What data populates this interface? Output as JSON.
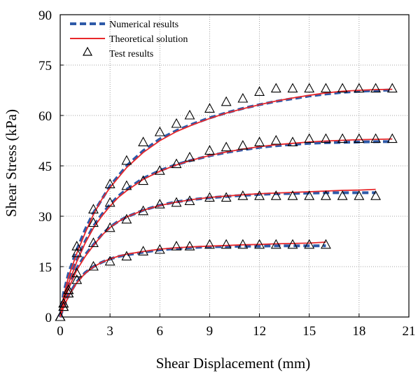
{
  "chart_data": {
    "type": "line",
    "xlabel": "Shear Displacement (mm)",
    "ylabel": "Shear Stress (kPa)",
    "xlim": [
      0,
      21
    ],
    "ylim": [
      0,
      90
    ],
    "xticks": [
      "0",
      "3",
      "6",
      "9",
      "12",
      "15",
      "18",
      "21"
    ],
    "yticks": [
      "0",
      "15",
      "30",
      "45",
      "60",
      "75",
      "90"
    ],
    "grid": true,
    "legend_position": "top-left",
    "legend": [
      {
        "label": "Numerical results",
        "style": "dashed",
        "color": "#2e5aa8"
      },
      {
        "label": "Theoretical solution",
        "style": "solid",
        "color": "#e8282b"
      },
      {
        "label": "Test results",
        "style": "triangle",
        "color": "#000000"
      }
    ],
    "groups": [
      {
        "numerical": {
          "x": [
            0,
            0.2,
            0.5,
            1,
            1.5,
            2,
            2.5,
            3,
            3.5,
            4,
            5,
            6,
            7,
            8,
            9,
            10,
            11,
            12,
            13,
            14,
            15,
            16,
            17,
            18,
            19,
            20
          ],
          "y": [
            0,
            7,
            13,
            20,
            26,
            31,
            35,
            39,
            42,
            45,
            49.5,
            53,
            55.5,
            57.5,
            59.3,
            60.8,
            62.1,
            63.2,
            64.2,
            65,
            65.8,
            66.4,
            66.9,
            67.2,
            67.4,
            67.6
          ]
        },
        "theoretical": {
          "x": [
            0,
            0.2,
            0.5,
            1,
            1.5,
            2,
            2.5,
            3,
            3.5,
            4,
            5,
            6,
            7,
            8,
            9,
            10,
            11,
            12,
            13,
            14,
            15,
            16,
            17,
            18,
            19,
            20
          ],
          "y": [
            0,
            6,
            12,
            19,
            25,
            30.5,
            35,
            38.5,
            41.5,
            44.5,
            49,
            52.5,
            55.2,
            57.3,
            59.1,
            60.7,
            62,
            63.2,
            64.3,
            65.2,
            66,
            66.7,
            67.2,
            67.5,
            67.7,
            67.8
          ]
        },
        "test": {
          "x": [
            0,
            0.2,
            0.5,
            1,
            2,
            3,
            4,
            5,
            6,
            7,
            7.8,
            9,
            10,
            11,
            12,
            13,
            14,
            15,
            16,
            17,
            18,
            19,
            20
          ],
          "y": [
            0,
            4,
            8,
            21,
            32,
            39.5,
            46.5,
            52,
            55,
            57.5,
            60,
            62,
            64,
            65,
            67,
            68,
            68,
            68,
            68,
            68,
            68,
            68,
            68
          ]
        }
      },
      {
        "numerical": {
          "x": [
            0,
            0.2,
            0.5,
            1,
            1.5,
            2,
            2.5,
            3,
            3.5,
            4,
            5,
            6,
            7,
            8,
            9,
            10,
            11,
            12,
            13,
            14,
            15,
            16,
            17,
            18,
            19,
            20
          ],
          "y": [
            0,
            5.5,
            10.5,
            17,
            22.5,
            27,
            30.5,
            33.5,
            36,
            38,
            41.3,
            43.6,
            45.4,
            46.8,
            48,
            49,
            49.8,
            50.5,
            51,
            51.4,
            51.7,
            51.9,
            52,
            52.1,
            52.2,
            52.2
          ]
        },
        "theoretical": {
          "x": [
            0,
            0.2,
            0.5,
            1,
            1.5,
            2,
            2.5,
            3,
            3.5,
            4,
            5,
            6,
            7,
            8,
            9,
            10,
            11,
            12,
            13,
            14,
            15,
            16,
            17,
            18,
            19,
            20
          ],
          "y": [
            0,
            5,
            10,
            16.5,
            22,
            26.5,
            30,
            33,
            35.6,
            37.6,
            41,
            43.4,
            45.3,
            46.8,
            48.1,
            49.1,
            50,
            50.7,
            51.3,
            51.7,
            52.1,
            52.4,
            52.6,
            52.8,
            52.9,
            53
          ]
        },
        "test": {
          "x": [
            0,
            0.2,
            0.5,
            1,
            2,
            3,
            4,
            5,
            6,
            7,
            7.8,
            9,
            10,
            11,
            12,
            13,
            14,
            15,
            16,
            17,
            18,
            19,
            20
          ],
          "y": [
            0,
            4,
            8,
            19,
            28,
            34,
            39,
            40.5,
            43.5,
            45.5,
            47.5,
            49.5,
            50.5,
            51,
            52,
            52.5,
            52,
            53,
            53,
            53,
            53,
            53,
            53
          ]
        }
      },
      {
        "numerical": {
          "x": [
            0,
            0.2,
            0.5,
            1,
            1.5,
            2,
            2.5,
            3,
            3.5,
            4,
            5,
            6,
            7,
            8,
            9,
            10,
            11,
            12,
            13,
            14,
            15,
            16,
            17,
            18,
            19
          ],
          "y": [
            0,
            4.5,
            9,
            14.5,
            18.5,
            21.5,
            24.5,
            26.8,
            28.5,
            29.8,
            31.8,
            33.3,
            34.3,
            35,
            35.5,
            35.9,
            36.2,
            36.5,
            36.7,
            36.8,
            36.9,
            37,
            37,
            37,
            37
          ]
        },
        "theoretical": {
          "x": [
            0,
            0.2,
            0.5,
            1,
            1.5,
            2,
            2.5,
            3,
            3.5,
            4,
            5,
            6,
            7,
            8,
            9,
            10,
            11,
            12,
            13,
            14,
            15,
            16,
            17,
            18,
            19
          ],
          "y": [
            0,
            4,
            8.5,
            14,
            18,
            21.3,
            24.3,
            26.6,
            28.4,
            29.8,
            31.8,
            33.2,
            34.2,
            35,
            35.6,
            36,
            36.4,
            36.7,
            36.9,
            37.1,
            37.3,
            37.5,
            37.7,
            37.8,
            38
          ]
        },
        "test": {
          "x": [
            0,
            0.2,
            0.5,
            1,
            2,
            3,
            4,
            5,
            6,
            7,
            7.8,
            9,
            10,
            11,
            12,
            13,
            14,
            15,
            16,
            17,
            18,
            19
          ],
          "y": [
            0,
            3,
            7,
            13,
            22,
            26.5,
            29,
            31.5,
            33.5,
            34,
            34.5,
            35.5,
            35.5,
            36,
            36,
            36,
            36,
            36,
            36,
            36,
            36,
            36
          ]
        }
      },
      {
        "numerical": {
          "x": [
            0,
            0.2,
            0.5,
            1,
            1.5,
            2,
            2.5,
            3,
            3.5,
            4,
            5,
            6,
            7,
            8,
            9,
            10,
            11,
            12,
            13,
            14,
            15,
            16
          ],
          "y": [
            0,
            3,
            6.5,
            10.5,
            13.2,
            15,
            16.3,
            17.3,
            18,
            18.5,
            19.3,
            20,
            20.4,
            20.7,
            20.9,
            21,
            21.1,
            21.1,
            21.2,
            21.2,
            21.2,
            21.2
          ]
        },
        "theoretical": {
          "x": [
            0,
            0.2,
            0.5,
            1,
            1.5,
            2,
            2.5,
            3,
            3.5,
            4,
            5,
            6,
            7,
            8,
            9,
            10,
            11,
            12,
            13,
            14,
            15,
            16
          ],
          "y": [
            0,
            2.8,
            6.2,
            10.2,
            13,
            14.9,
            16.3,
            17.3,
            18.1,
            18.7,
            19.5,
            20.2,
            20.6,
            20.9,
            21.1,
            21.3,
            21.5,
            21.6,
            21.8,
            21.9,
            22,
            22.3
          ]
        },
        "test": {
          "x": [
            0,
            0.2,
            0.5,
            1,
            2,
            3,
            4,
            5,
            6,
            7,
            7.8,
            9,
            10,
            11,
            12,
            13,
            14,
            15,
            16
          ],
          "y": [
            0,
            3,
            7,
            11,
            15,
            16.5,
            18,
            19.5,
            20,
            21,
            21,
            21.5,
            21.5,
            21.5,
            21.5,
            21.5,
            21.5,
            21.5,
            21.5
          ]
        }
      }
    ]
  }
}
